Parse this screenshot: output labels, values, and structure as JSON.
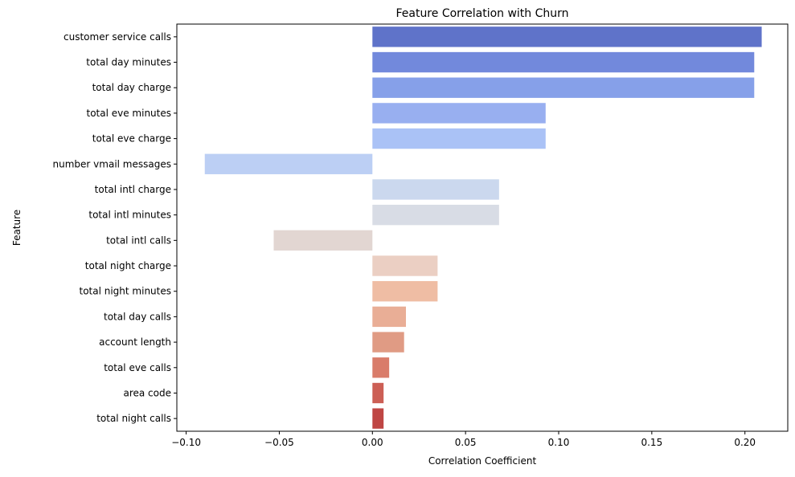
{
  "chart_data": {
    "type": "bar",
    "orientation": "horizontal",
    "title": "Feature Correlation with Churn",
    "xlabel": "Correlation Coefficient",
    "ylabel": "Feature",
    "xlim": [
      -0.105,
      0.223
    ],
    "xticks": [
      -0.1,
      -0.05,
      0.0,
      0.05,
      0.1,
      0.15,
      0.2
    ],
    "xtick_labels": [
      "−0.10",
      "−0.05",
      "0.00",
      "0.05",
      "0.10",
      "0.15",
      "0.20"
    ],
    "grid": false,
    "legend": "none",
    "categories": [
      "customer service calls",
      "total day minutes",
      "total day charge",
      "total eve minutes",
      "total eve charge",
      "number vmail messages",
      "total intl charge",
      "total intl minutes",
      "total intl calls",
      "total night charge",
      "total night minutes",
      "total day calls",
      "account length",
      "total eve calls",
      "area code",
      "total night calls"
    ],
    "values": [
      0.209,
      0.205,
      0.205,
      0.093,
      0.093,
      -0.09,
      0.068,
      0.068,
      -0.053,
      0.035,
      0.035,
      0.018,
      0.017,
      0.009,
      0.006,
      0.006
    ],
    "colors": [
      "#5f73c9",
      "#7289dc",
      "#86a0e9",
      "#98aff0",
      "#aac2f6",
      "#bccff4",
      "#cbd8ee",
      "#d8dce5",
      "#e2d6d2",
      "#ebcfc3",
      "#efbda4",
      "#e9ae96",
      "#e09b84",
      "#d97c6a",
      "#cc5f55",
      "#bf4644"
    ]
  }
}
